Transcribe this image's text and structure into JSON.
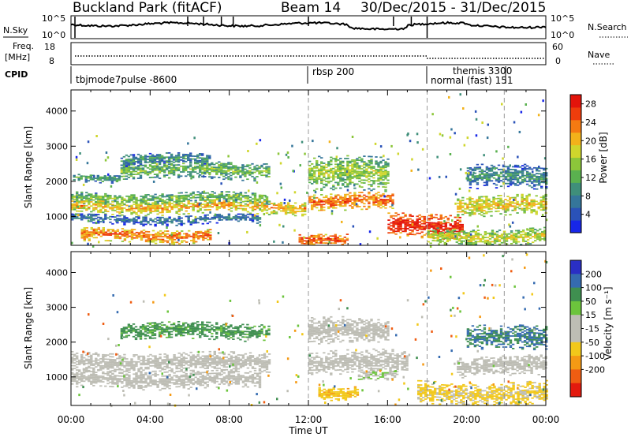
{
  "header": {
    "title": "Buckland Park (fitACF)",
    "beam": "Beam 14",
    "date_range": "30/Dec/2015 - 31/Dec/2015"
  },
  "strip_labels": {
    "nsky": "N.Sky",
    "freq": "Freq.",
    "freq_unit": "[MHz]",
    "cpid": "CPID",
    "nsearch": "N.Search",
    "nave": "Nave",
    "nsky_top": "10^5",
    "nsky_bottom": "10^0",
    "freq_ticks": [
      "18",
      "8"
    ],
    "nave_ticks": [
      "60",
      "0"
    ]
  },
  "cpid_modes": [
    {
      "label": "tbjmode7pulse -8600",
      "start_hour": 0
    },
    {
      "label": "rbsp 200",
      "start_hour": 12
    },
    {
      "label": "themis 3300",
      "start_hour": 18.05
    },
    {
      "label": "normal (fast) 151",
      "start_hour": 18.1
    }
  ],
  "chart_data": [
    {
      "type": "heatmap",
      "parameter": "Power",
      "ylabel": "Slant Range [km]",
      "ylim": [
        180,
        4600
      ],
      "y_ticks": [
        1000,
        2000,
        3000,
        4000
      ],
      "xlim_hours": [
        0,
        24
      ],
      "x_ticks": [
        "00:00",
        "04:00",
        "08:00",
        "12:00",
        "16:00",
        "20:00",
        "00:00"
      ],
      "colorbar": {
        "label": "Power [dB]",
        "ticks": [
          "4",
          "8",
          "12",
          "16",
          "20",
          "24",
          "28"
        ],
        "range": [
          0,
          30
        ],
        "colors": [
          "#1726e8",
          "#2a52b8",
          "#35769a",
          "#3f8f7a",
          "#5ab14f",
          "#8cc63a",
          "#cfd62c",
          "#f2b21a",
          "#f47a12",
          "#ee3d0c",
          "#e3140b"
        ]
      },
      "echo_bands": [
        {
          "t0": 0.0,
          "t1": 10.0,
          "r_center": 1500,
          "r_width": 180,
          "value": 14
        },
        {
          "t0": 0.0,
          "t1": 11.8,
          "r_center": 1250,
          "r_width": 200,
          "value": 21
        },
        {
          "t0": 0.0,
          "t1": 9.5,
          "r_center": 900,
          "r_width": 140,
          "value": 8
        },
        {
          "t0": 0.5,
          "t1": 7.0,
          "r_center": 450,
          "r_width": 200,
          "value": 24
        },
        {
          "t0": 2.5,
          "t1": 10.0,
          "r_center": 2300,
          "r_width": 260,
          "value": 14
        },
        {
          "t0": 2.5,
          "t1": 7.0,
          "r_center": 2600,
          "r_width": 180,
          "value": 10
        },
        {
          "t0": 0.1,
          "t1": 2.5,
          "r_center": 2100,
          "r_width": 120,
          "value": 12
        },
        {
          "t0": 12.0,
          "t1": 16.3,
          "r_center": 1400,
          "r_width": 260,
          "value": 25
        },
        {
          "t0": 12.0,
          "t1": 16.0,
          "r_center": 2200,
          "r_width": 500,
          "value": 16
        },
        {
          "t0": 16.0,
          "t1": 19.8,
          "r_center": 700,
          "r_width": 350,
          "value": 29
        },
        {
          "t0": 11.5,
          "t1": 14.0,
          "r_center": 350,
          "r_width": 200,
          "value": 26
        },
        {
          "t0": 19.5,
          "t1": 24.0,
          "r_center": 1300,
          "r_width": 300,
          "value": 20
        },
        {
          "t0": 20.0,
          "t1": 24.0,
          "r_center": 2100,
          "r_width": 350,
          "value": 10
        },
        {
          "t0": 18.0,
          "t1": 24.0,
          "r_center": 400,
          "r_width": 250,
          "value": 18
        }
      ]
    },
    {
      "type": "heatmap",
      "parameter": "Velocity",
      "ylabel": "Slant Range [km]",
      "xlabel": "Time UT",
      "ylim": [
        180,
        4600
      ],
      "y_ticks": [
        1000,
        2000,
        3000,
        4000
      ],
      "xlim_hours": [
        0,
        24
      ],
      "x_ticks": [
        "00:00",
        "04:00",
        "08:00",
        "12:00",
        "16:00",
        "20:00",
        "00:00"
      ],
      "colorbar": {
        "label": "Velocity [m s⁻¹]",
        "ticks": [
          "200",
          "100",
          "50",
          "15",
          "-15",
          "-50",
          "-100",
          "-200"
        ],
        "colors": [
          "#2a2fc4",
          "#356bb0",
          "#3f8f50",
          "#6cc43c",
          "#bdbdb4",
          "#bdbdb4",
          "#f2c81a",
          "#f59a14",
          "#ef5d12",
          "#e31a0e"
        ]
      },
      "echo_bands": [
        {
          "t0": 0.0,
          "t1": 10.0,
          "r_center": 1400,
          "r_width": 300,
          "value": 0
        },
        {
          "t0": 0.0,
          "t1": 9.5,
          "r_center": 900,
          "r_width": 250,
          "value": 0
        },
        {
          "t0": 2.5,
          "t1": 10.0,
          "r_center": 2300,
          "r_width": 260,
          "value": 120
        },
        {
          "t0": 12.0,
          "t1": 17.0,
          "r_center": 1400,
          "r_width": 350,
          "value": 0
        },
        {
          "t0": 14.5,
          "t1": 16.5,
          "r_center": 1000,
          "r_width": 150,
          "value": 40
        },
        {
          "t0": 12.0,
          "t1": 16.0,
          "r_center": 2300,
          "r_width": 400,
          "value": 10
        },
        {
          "t0": 12.5,
          "t1": 14.5,
          "r_center": 550,
          "r_width": 200,
          "value": -80
        },
        {
          "t0": 19.5,
          "t1": 24.0,
          "r_center": 1300,
          "r_width": 300,
          "value": 0
        },
        {
          "t0": 17.5,
          "t1": 24.0,
          "r_center": 500,
          "r_width": 350,
          "value": -60
        },
        {
          "t0": 20.0,
          "t1": 24.0,
          "r_center": 2100,
          "r_width": 350,
          "value": 150
        }
      ]
    }
  ]
}
